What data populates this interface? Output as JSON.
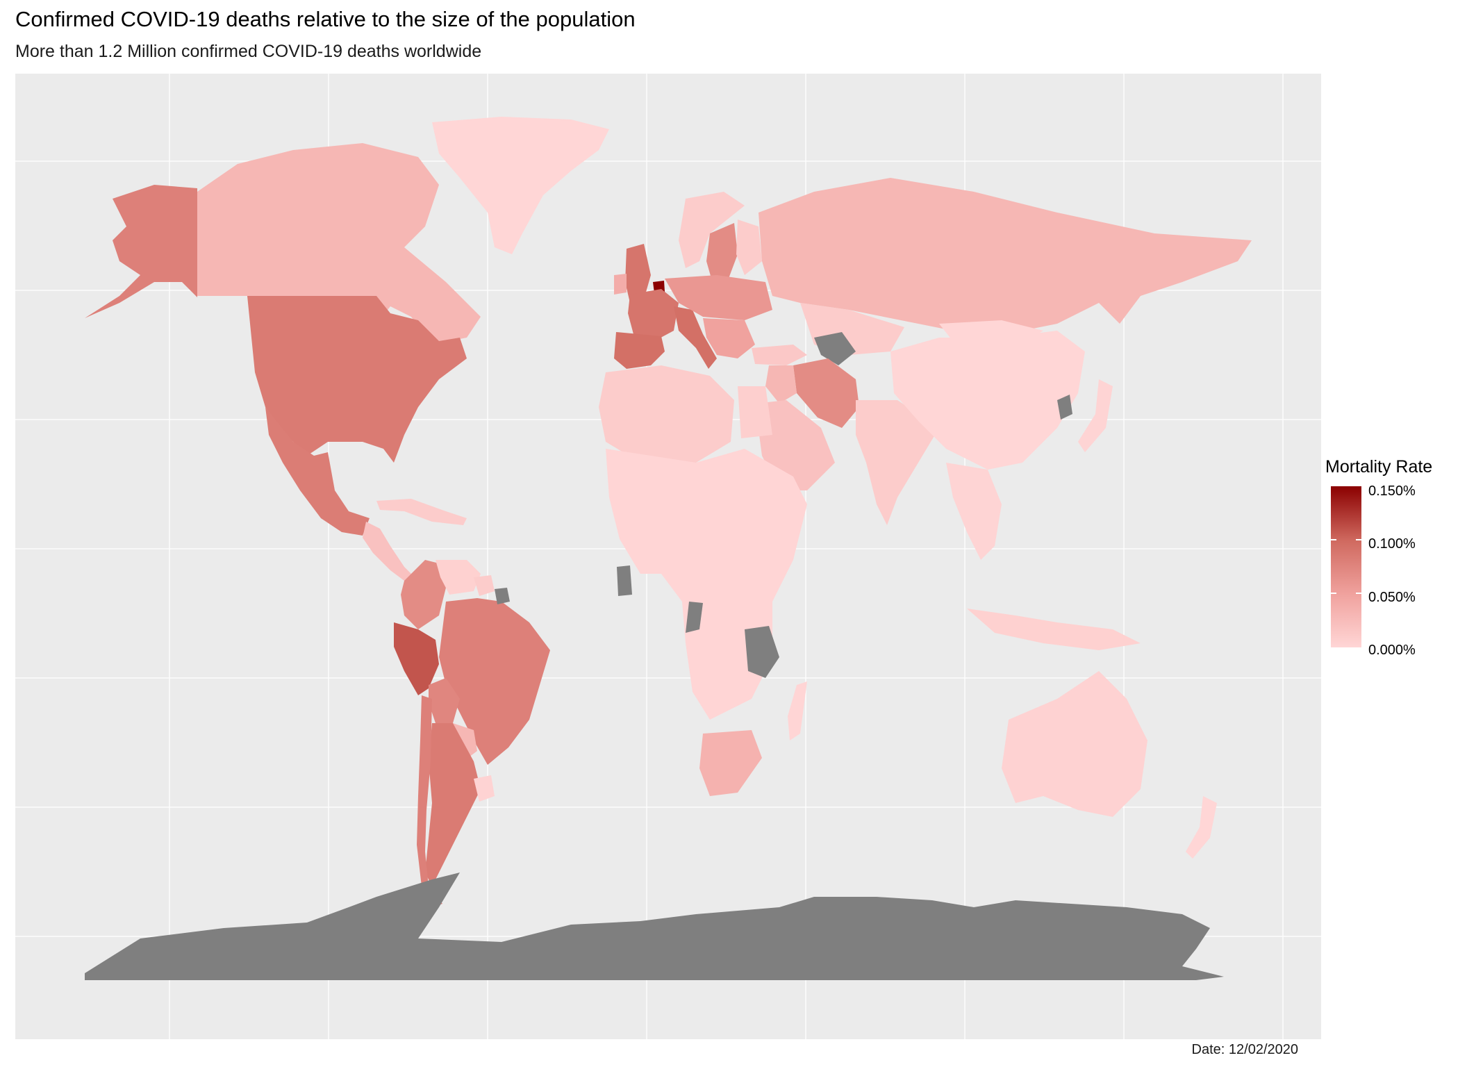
{
  "title": "Confirmed COVID-19 deaths relative to the size of the population",
  "subtitle": "More than 1.2 Million confirmed COVID-19 deaths worldwide",
  "caption": "Date: 12/02/2020",
  "legend": {
    "title": "Mortality Rate",
    "labels": [
      "0.150%",
      "0.100%",
      "0.050%",
      "0.000%"
    ],
    "colors": [
      "#ffd6d6",
      "#f0a29e",
      "#d06a60",
      "#8b0000"
    ],
    "range_percent": [
      0,
      0.15
    ]
  },
  "colors": {
    "panel_background": "#ebebeb",
    "grid": "#ffffff",
    "no_data": "#7f7f7f"
  },
  "map_data": {
    "type": "choropleth",
    "variable": "mortality_rate_percent",
    "regions": [
      {
        "region": "Greenland",
        "value": 0.0
      },
      {
        "region": "Canada",
        "value": 0.03
      },
      {
        "region": "Alaska",
        "value": 0.08
      },
      {
        "region": "USA",
        "value": 0.085
      },
      {
        "region": "Mexico",
        "value": 0.083
      },
      {
        "region": "Central America",
        "value": 0.02
      },
      {
        "region": "Caribbean",
        "value": 0.01
      },
      {
        "region": "Colombia",
        "value": 0.07
      },
      {
        "region": "Venezuela",
        "value": 0.005
      },
      {
        "region": "Guyana",
        "value": 0.01
      },
      {
        "region": "Brazil",
        "value": 0.08
      },
      {
        "region": "Peru",
        "value": 0.11
      },
      {
        "region": "Bolivia",
        "value": 0.075
      },
      {
        "region": "Paraguay",
        "value": 0.03
      },
      {
        "region": "Argentina",
        "value": 0.085
      },
      {
        "region": "Chile",
        "value": 0.08
      },
      {
        "region": "Uruguay",
        "value": 0.003
      },
      {
        "region": "United Kingdom",
        "value": 0.09
      },
      {
        "region": "Ireland",
        "value": 0.04
      },
      {
        "region": "Belgium",
        "value": 0.15
      },
      {
        "region": "France",
        "value": 0.09
      },
      {
        "region": "Spain",
        "value": 0.095
      },
      {
        "region": "Italy",
        "value": 0.095
      },
      {
        "region": "Sweden",
        "value": 0.07
      },
      {
        "region": "Norway",
        "value": 0.01
      },
      {
        "region": "Finland",
        "value": 0.01
      },
      {
        "region": "Central Europe",
        "value": 0.06
      },
      {
        "region": "Balkans",
        "value": 0.05
      },
      {
        "region": "Russia",
        "value": 0.03
      },
      {
        "region": "Iran",
        "value": 0.07
      },
      {
        "region": "Iraq",
        "value": 0.03
      },
      {
        "region": "Saudi Arabia",
        "value": 0.02
      },
      {
        "region": "Turkey",
        "value": 0.013
      },
      {
        "region": "Kazakhstan",
        "value": 0.01
      },
      {
        "region": "India",
        "value": 0.01
      },
      {
        "region": "China",
        "value": 0.0
      },
      {
        "region": "Mongolia",
        "value": 0.0
      },
      {
        "region": "Japan",
        "value": 0.002
      },
      {
        "region": "Southeast Asia",
        "value": 0.002
      },
      {
        "region": "Indonesia",
        "value": 0.005
      },
      {
        "region": "North Africa",
        "value": 0.01
      },
      {
        "region": "Egypt",
        "value": 0.007
      },
      {
        "region": "Sub-Saharan Africa",
        "value": 0.001
      },
      {
        "region": "South Africa",
        "value": 0.035
      },
      {
        "region": "Madagascar",
        "value": 0.001
      },
      {
        "region": "Australia",
        "value": 0.004
      },
      {
        "region": "New Zealand",
        "value": 0.0
      },
      {
        "region": "Turkmenistan",
        "value": null
      },
      {
        "region": "North Korea",
        "value": null
      },
      {
        "region": "Tanzania",
        "value": null
      },
      {
        "region": "Congo",
        "value": null
      },
      {
        "region": "Ghana",
        "value": null
      },
      {
        "region": "French Guiana",
        "value": null
      },
      {
        "region": "Antarctica",
        "value": null
      }
    ]
  }
}
